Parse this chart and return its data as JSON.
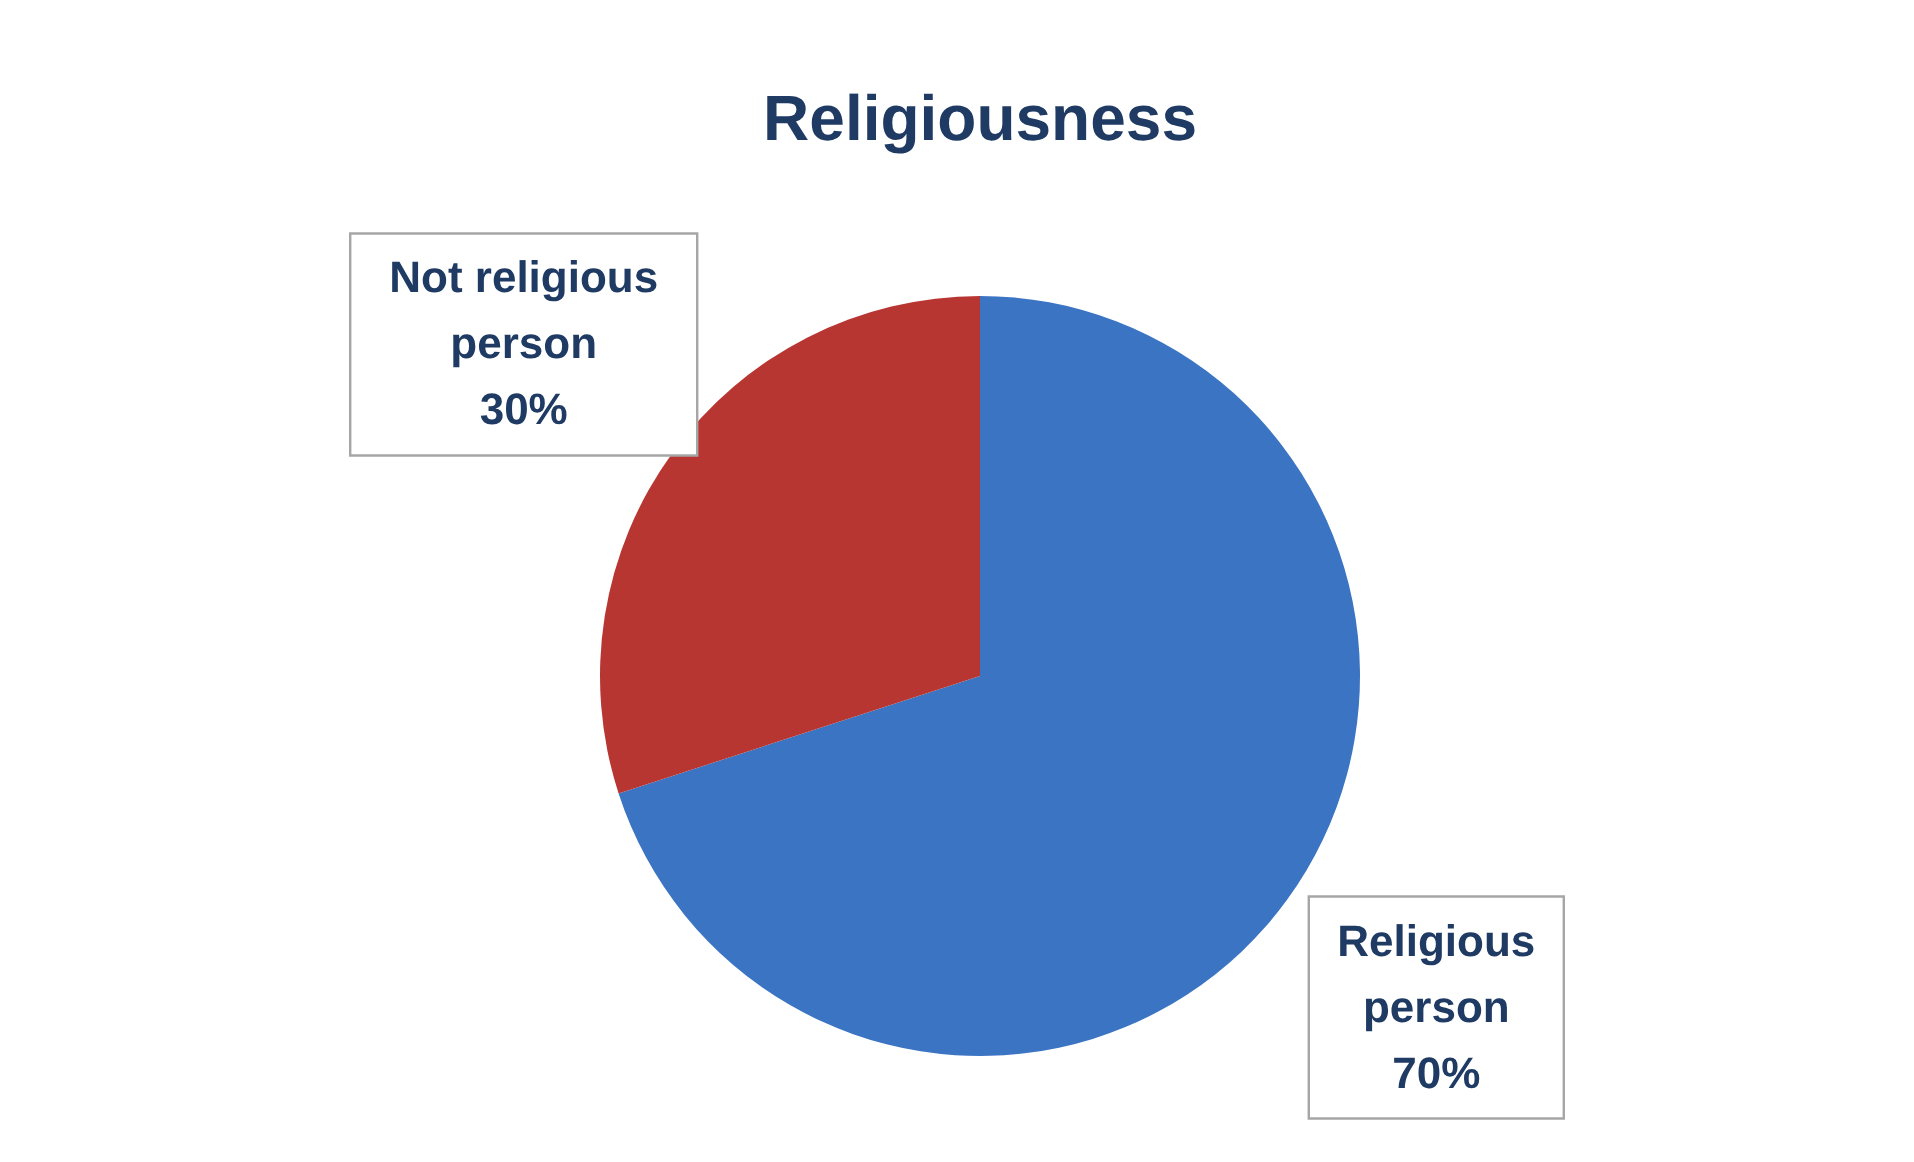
{
  "chart_data": {
    "type": "pie",
    "title": "Religiousness",
    "categories": [
      "Religious person",
      "Not religious person"
    ],
    "values": [
      70,
      30
    ],
    "colors": [
      "#3b74c3",
      "#b73632"
    ],
    "value_labels": [
      "70%",
      "30%"
    ],
    "legend": false
  }
}
